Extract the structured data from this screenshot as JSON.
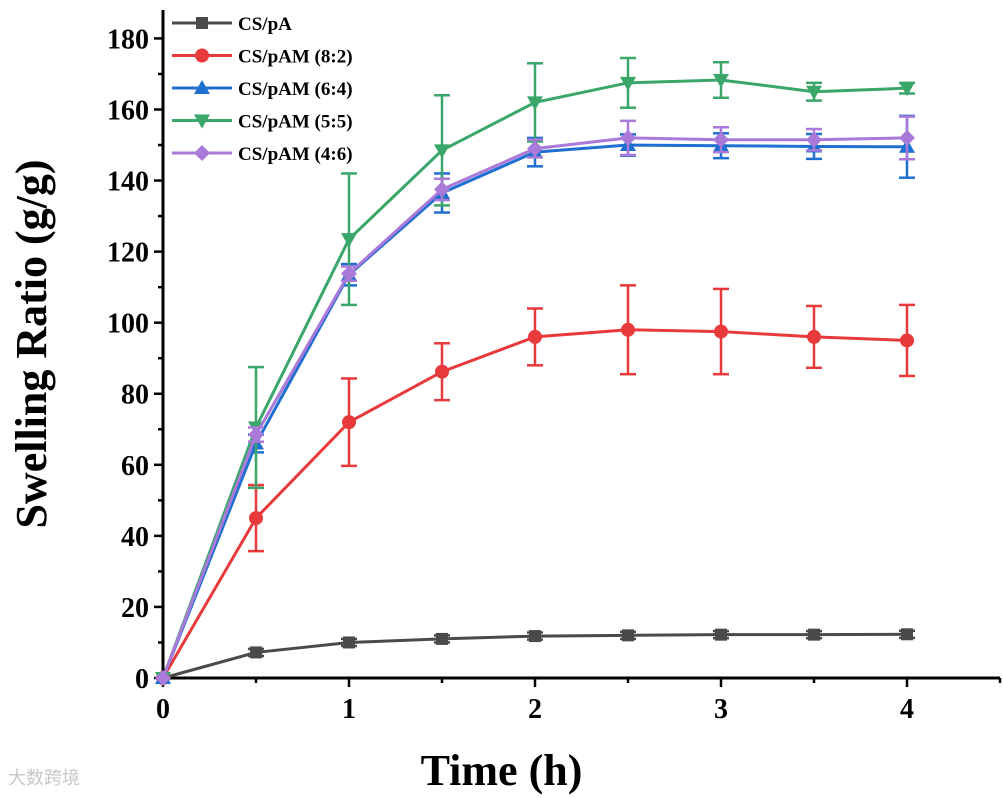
{
  "chart_data": {
    "type": "line",
    "title": "",
    "xlabel": "Time (h)",
    "ylabel": "Swelling Ratio (g/g)",
    "xlim": [
      0,
      4.5
    ],
    "ylim": [
      0,
      188
    ],
    "xticks": [
      0,
      1,
      2,
      3,
      4
    ],
    "yticks": [
      0,
      20,
      40,
      60,
      80,
      100,
      120,
      140,
      160,
      180
    ],
    "legend_position": "top-left",
    "grid": false,
    "x": [
      0,
      0.5,
      1,
      1.5,
      2,
      2.5,
      3,
      3.5,
      4
    ],
    "series": [
      {
        "name": "CS/pA",
        "color": "#4a4a4a",
        "marker": "square",
        "values": [
          0,
          7.2,
          10,
          11,
          11.8,
          12,
          12.2,
          12.2,
          12.3
        ],
        "errors": [
          0,
          1,
          1,
          1,
          1,
          1,
          1,
          1,
          1
        ]
      },
      {
        "name": "CS/pAM (8:2)",
        "color": "#e8393b",
        "marker": "circle",
        "values": [
          0,
          45,
          72,
          86.2,
          96,
          98,
          97.5,
          96,
          95
        ],
        "errors": [
          0,
          9.3,
          12.3,
          8,
          8,
          12.5,
          12,
          8.7,
          10
        ]
      },
      {
        "name": "CS/pAM (6:4)",
        "color": "#1f6fd0",
        "marker": "triangle-up",
        "values": [
          0,
          66,
          113.5,
          136.5,
          148,
          150,
          149.8,
          149.6,
          149.5
        ],
        "errors": [
          0,
          2.5,
          3,
          5.5,
          4,
          3,
          3.5,
          3.5,
          8.7
        ]
      },
      {
        "name": "CS/pAM (5:5)",
        "color": "#3aa66a",
        "marker": "triangle-down",
        "values": [
          0,
          70.5,
          123.5,
          148.5,
          162,
          167.5,
          168.3,
          165,
          166
        ],
        "errors": [
          0,
          17,
          18.5,
          15.5,
          11,
          7,
          5,
          2.5,
          1.5
        ]
      },
      {
        "name": "CS/pAM (4:6)",
        "color": "#a97ad9",
        "marker": "diamond",
        "values": [
          0,
          68.5,
          113.8,
          137.5,
          149,
          152,
          151.5,
          151.5,
          152
        ],
        "errors": [
          0,
          2,
          2,
          3,
          2.5,
          4.8,
          3.5,
          3,
          6
        ]
      }
    ]
  },
  "watermark": "大数跨境"
}
